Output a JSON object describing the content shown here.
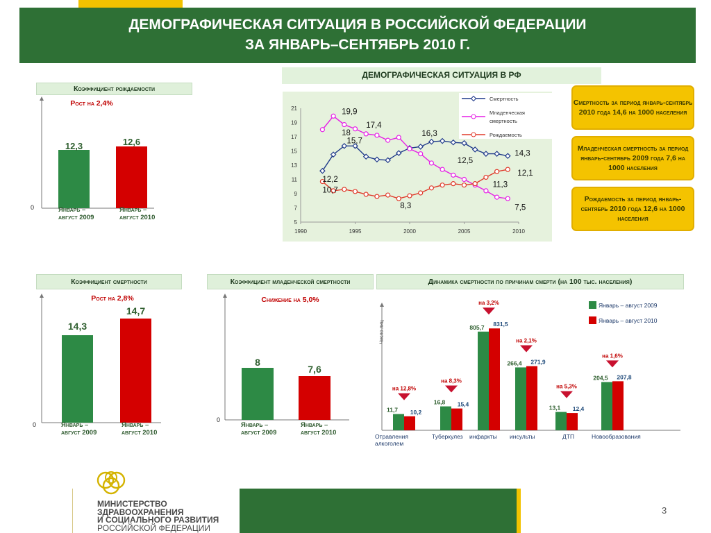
{
  "header": {
    "line1": "ДЕМОГРАФИЧЕСКАЯ СИТУАЦИЯ В РОССИЙСКОЙ ФЕДЕРАЦИИ",
    "line2": "ЗА ЯНВАРЬ–СЕНТЯБРЬ 2010 Г."
  },
  "line_panel_title": "ДЕМОГРАФИЧЕСКАЯ СИТУАЦИЯ В РФ",
  "info_boxes": [
    "Смертность за период январь-сентябрь 2010 года 14,6 на 1000 населения",
    "Младенческая смертность за период январь-сентябрь 2009 года 7,6 на 1000 населения",
    "Рождаемость за период январь-сентябрь 2010 года 12,6 на 1000 населения"
  ],
  "colors": {
    "green_dark": "#2e7035",
    "yellow": "#f2c200",
    "bar_green": "#2d8a45",
    "bar_red": "#d40000",
    "blue_line": "#1f3a8a",
    "magenta_line": "#e61fe6",
    "red_line": "#e03a2a"
  },
  "labels": {
    "period_2009": "Январь – август 2009",
    "period_2010": "Январь – август 2010",
    "zero": "0"
  },
  "chart_data": [
    {
      "id": "birth",
      "type": "bar",
      "title": "Коэффициент рождаемости",
      "annotation": "Рост на 2,4%",
      "categories": [
        "Январь – август 2009",
        "Январь – август 2010"
      ],
      "values": [
        12.3,
        12.6
      ],
      "value_labels": [
        "12,3",
        "12,6"
      ]
    },
    {
      "id": "line",
      "type": "line",
      "title": "ДЕМОГРАФИЧЕСКАЯ СИТУАЦИЯ В РФ",
      "x": [
        1992,
        1993,
        1994,
        1995,
        1996,
        1997,
        1998,
        1999,
        2000,
        2001,
        2002,
        2003,
        2004,
        2005,
        2006,
        2007,
        2008,
        2009
      ],
      "xticks": [
        "1990",
        "1995",
        "2000",
        "2005",
        "2010"
      ],
      "yticks": [
        "5",
        "7",
        "9",
        "11",
        "13",
        "15",
        "17",
        "19",
        "21"
      ],
      "xlim": [
        1990,
        2010
      ],
      "ylim": [
        5,
        21
      ],
      "series": [
        {
          "name": "Смертность",
          "color": "#1f3a8a",
          "marker": "diamond",
          "values": [
            12.2,
            14.5,
            15.7,
            15.7,
            14.2,
            13.8,
            13.7,
            14.7,
            15.4,
            15.6,
            16.3,
            16.4,
            16.2,
            16.1,
            15.2,
            14.6,
            14.6,
            14.3
          ]
        },
        {
          "name": "Младенческая смертность",
          "color": "#e61fe6",
          "marker": "circle",
          "values": [
            18,
            19.9,
            18.7,
            18.1,
            17.4,
            17.2,
            16.5,
            16.9,
            15.3,
            14.6,
            13.3,
            12.4,
            11.6,
            11,
            10.2,
            9.4,
            8.5,
            8.3
          ]
        },
        {
          "name": "Рождаемость",
          "color": "#e03a2a",
          "marker": "circle",
          "values": [
            10.7,
            9.4,
            9.6,
            9.3,
            8.9,
            8.6,
            8.8,
            8.3,
            8.7,
            9.1,
            9.8,
            10.2,
            10.4,
            10.2,
            10.4,
            11.3,
            12.1,
            12.4
          ]
        }
      ],
      "annotations": [
        {
          "text": "19,9",
          "x": 1993,
          "y": 19.9
        },
        {
          "text": "18",
          "x": 1993,
          "y": 18
        },
        {
          "text": "17,4",
          "x": 1996,
          "y": 17.4
        },
        {
          "text": "15,7",
          "x": 1995,
          "y": 15.7
        },
        {
          "text": "16,3",
          "x": 2002,
          "y": 16.3
        },
        {
          "text": "14,3",
          "x": 2009,
          "y": 14.3
        },
        {
          "text": "12,2",
          "x": 1992,
          "y": 12.2
        },
        {
          "text": "12,5",
          "x": 2004,
          "y": 12.5
        },
        {
          "text": "12,1",
          "x": 2009,
          "y": 12.1
        },
        {
          "text": "11,3",
          "x": 2008,
          "y": 11.3
        },
        {
          "text": "10,7",
          "x": 1992,
          "y": 10.7
        },
        {
          "text": "7,5",
          "x": 2009,
          "y": 7.5
        },
        {
          "text": "8,3",
          "x": 1999,
          "y": 8.3
        }
      ]
    },
    {
      "id": "death",
      "type": "bar",
      "title": "Коэффициент смертности",
      "annotation": "Рост на 2,8%",
      "categories": [
        "Январь – август 2009",
        "Январь – август 2010"
      ],
      "values": [
        14.3,
        14.7
      ],
      "value_labels": [
        "14,3",
        "14,7"
      ]
    },
    {
      "id": "infant",
      "type": "bar",
      "title": "Коэффициент младенческой смертности",
      "annotation": "Снижение на 5,0%",
      "categories": [
        "Январь – август 2009",
        "Январь – август 2010"
      ],
      "values": [
        8,
        7.6
      ],
      "value_labels": [
        "8",
        "7,6"
      ]
    },
    {
      "id": "causes",
      "type": "bar",
      "title": "Динамика смертности по причинам смерти (на 100 тыс. населения)",
      "ylabel": "Число лиц",
      "legend": [
        "Январь – август 2009",
        "Январь – август 2010"
      ],
      "categories": [
        "Отравления алкоголем",
        "Туберкулез",
        "инфаркты",
        "инсульты",
        "ДТП",
        "Новообразования"
      ],
      "series": [
        {
          "name": "Январь – август 2009",
          "values": [
            11.7,
            16.8,
            805.7,
            266.4,
            13.1,
            204.5
          ],
          "labels": [
            "11,7",
            "16,8",
            "805,7",
            "266,4",
            "13,1",
            "204,5"
          ]
        },
        {
          "name": "Январь – август 2010",
          "values": [
            10.2,
            15.4,
            831.5,
            271.9,
            12.4,
            207.8
          ],
          "labels": [
            "10,2",
            "15,4",
            "831,5",
            "271,9",
            "12,4",
            "207,8"
          ]
        }
      ],
      "changes": [
        "на 12,8%",
        "на 8,3%",
        "на 3,2%",
        "на 2,1%",
        "на 5,3%",
        "на 1,6%"
      ]
    }
  ],
  "footer": {
    "ministry_lines": [
      "МИНИСТЕРСТВО",
      "ЗДРАВООХРАНЕНИЯ",
      "И СОЦИАЛЬНОГО РАЗВИТИЯ",
      "РОССИЙСКОЙ ФЕДЕРАЦИИ"
    ],
    "page_number": "3"
  }
}
